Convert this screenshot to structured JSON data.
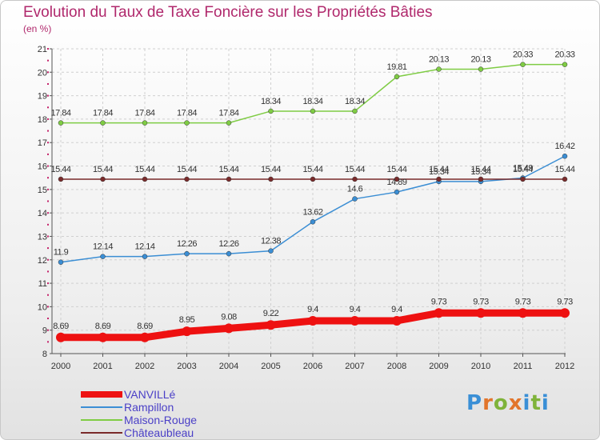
{
  "title": "Evolution du Taux de Taxe Foncière sur les Propriétés Bâties",
  "subtitle": "(en %)",
  "logo": "Proxiti",
  "logo_colors": [
    "#3a8fd6",
    "#e2752b",
    "#7fb33a",
    "#e2752b",
    "#3a8fd6",
    "#7fb33a",
    "#3a8fd6"
  ],
  "chart_data": {
    "type": "line",
    "x": [
      "2000",
      "2001",
      "2002",
      "2003",
      "2004",
      "2005",
      "2006",
      "2007",
      "2008",
      "2009",
      "2010",
      "2011",
      "2012"
    ],
    "ylim": [
      8,
      21
    ],
    "yticks": [
      "8",
      "9",
      "10",
      "11",
      "12",
      "13",
      "14",
      "15",
      "16",
      "17",
      "18",
      "19",
      "20",
      "21"
    ],
    "grid": true,
    "legend_position": "bottom-left",
    "series": [
      {
        "name": "VANVILLé",
        "color": "#ee1111",
        "values": [
          8.69,
          8.69,
          8.69,
          8.95,
          9.08,
          9.22,
          9.4,
          9.4,
          9.4,
          9.73,
          9.73,
          9.73,
          9.73
        ],
        "labels": [
          "8.69",
          "8.69",
          "8.69",
          "8.95",
          "9.08",
          "9.22",
          "9.4",
          "9.4",
          "9.4",
          "9.73",
          "9.73",
          "9.73",
          "9.73"
        ]
      },
      {
        "name": "Rampillon",
        "color": "#3b8ed4",
        "values": [
          11.9,
          12.14,
          12.14,
          12.26,
          12.26,
          12.38,
          13.62,
          14.6,
          14.89,
          15.34,
          15.34,
          15.49,
          16.42
        ],
        "labels": [
          "11.9",
          "12.14",
          "12.14",
          "12.26",
          "12.26",
          "12.38",
          "13.62",
          "14.6",
          "14.89",
          "15.34",
          "15.34",
          "15.49",
          "16.42"
        ]
      },
      {
        "name": "Maison-Rouge",
        "color": "#7fcc44",
        "values": [
          17.84,
          17.84,
          17.84,
          17.84,
          17.84,
          18.34,
          18.34,
          18.34,
          19.81,
          20.13,
          20.13,
          20.33,
          20.33
        ],
        "labels": [
          "17.84",
          "17.84",
          "17.84",
          "17.84",
          "17.84",
          "18.34",
          "18.34",
          "18.34",
          "19.81",
          "20.13",
          "20.13",
          "20.33",
          "20.33"
        ]
      },
      {
        "name": "Châteaubleau",
        "color": "#7a2b2b",
        "values": [
          15.44,
          15.44,
          15.44,
          15.44,
          15.44,
          15.44,
          15.44,
          15.44,
          15.44,
          15.44,
          15.44,
          15.44,
          15.44
        ],
        "labels": [
          "15.44",
          "15.44",
          "15.44",
          "15.44",
          "15.44",
          "15.44",
          "15.44",
          "15.44",
          "15.44",
          "15.44",
          "15.44",
          "15.44",
          "15.44"
        ]
      }
    ]
  }
}
